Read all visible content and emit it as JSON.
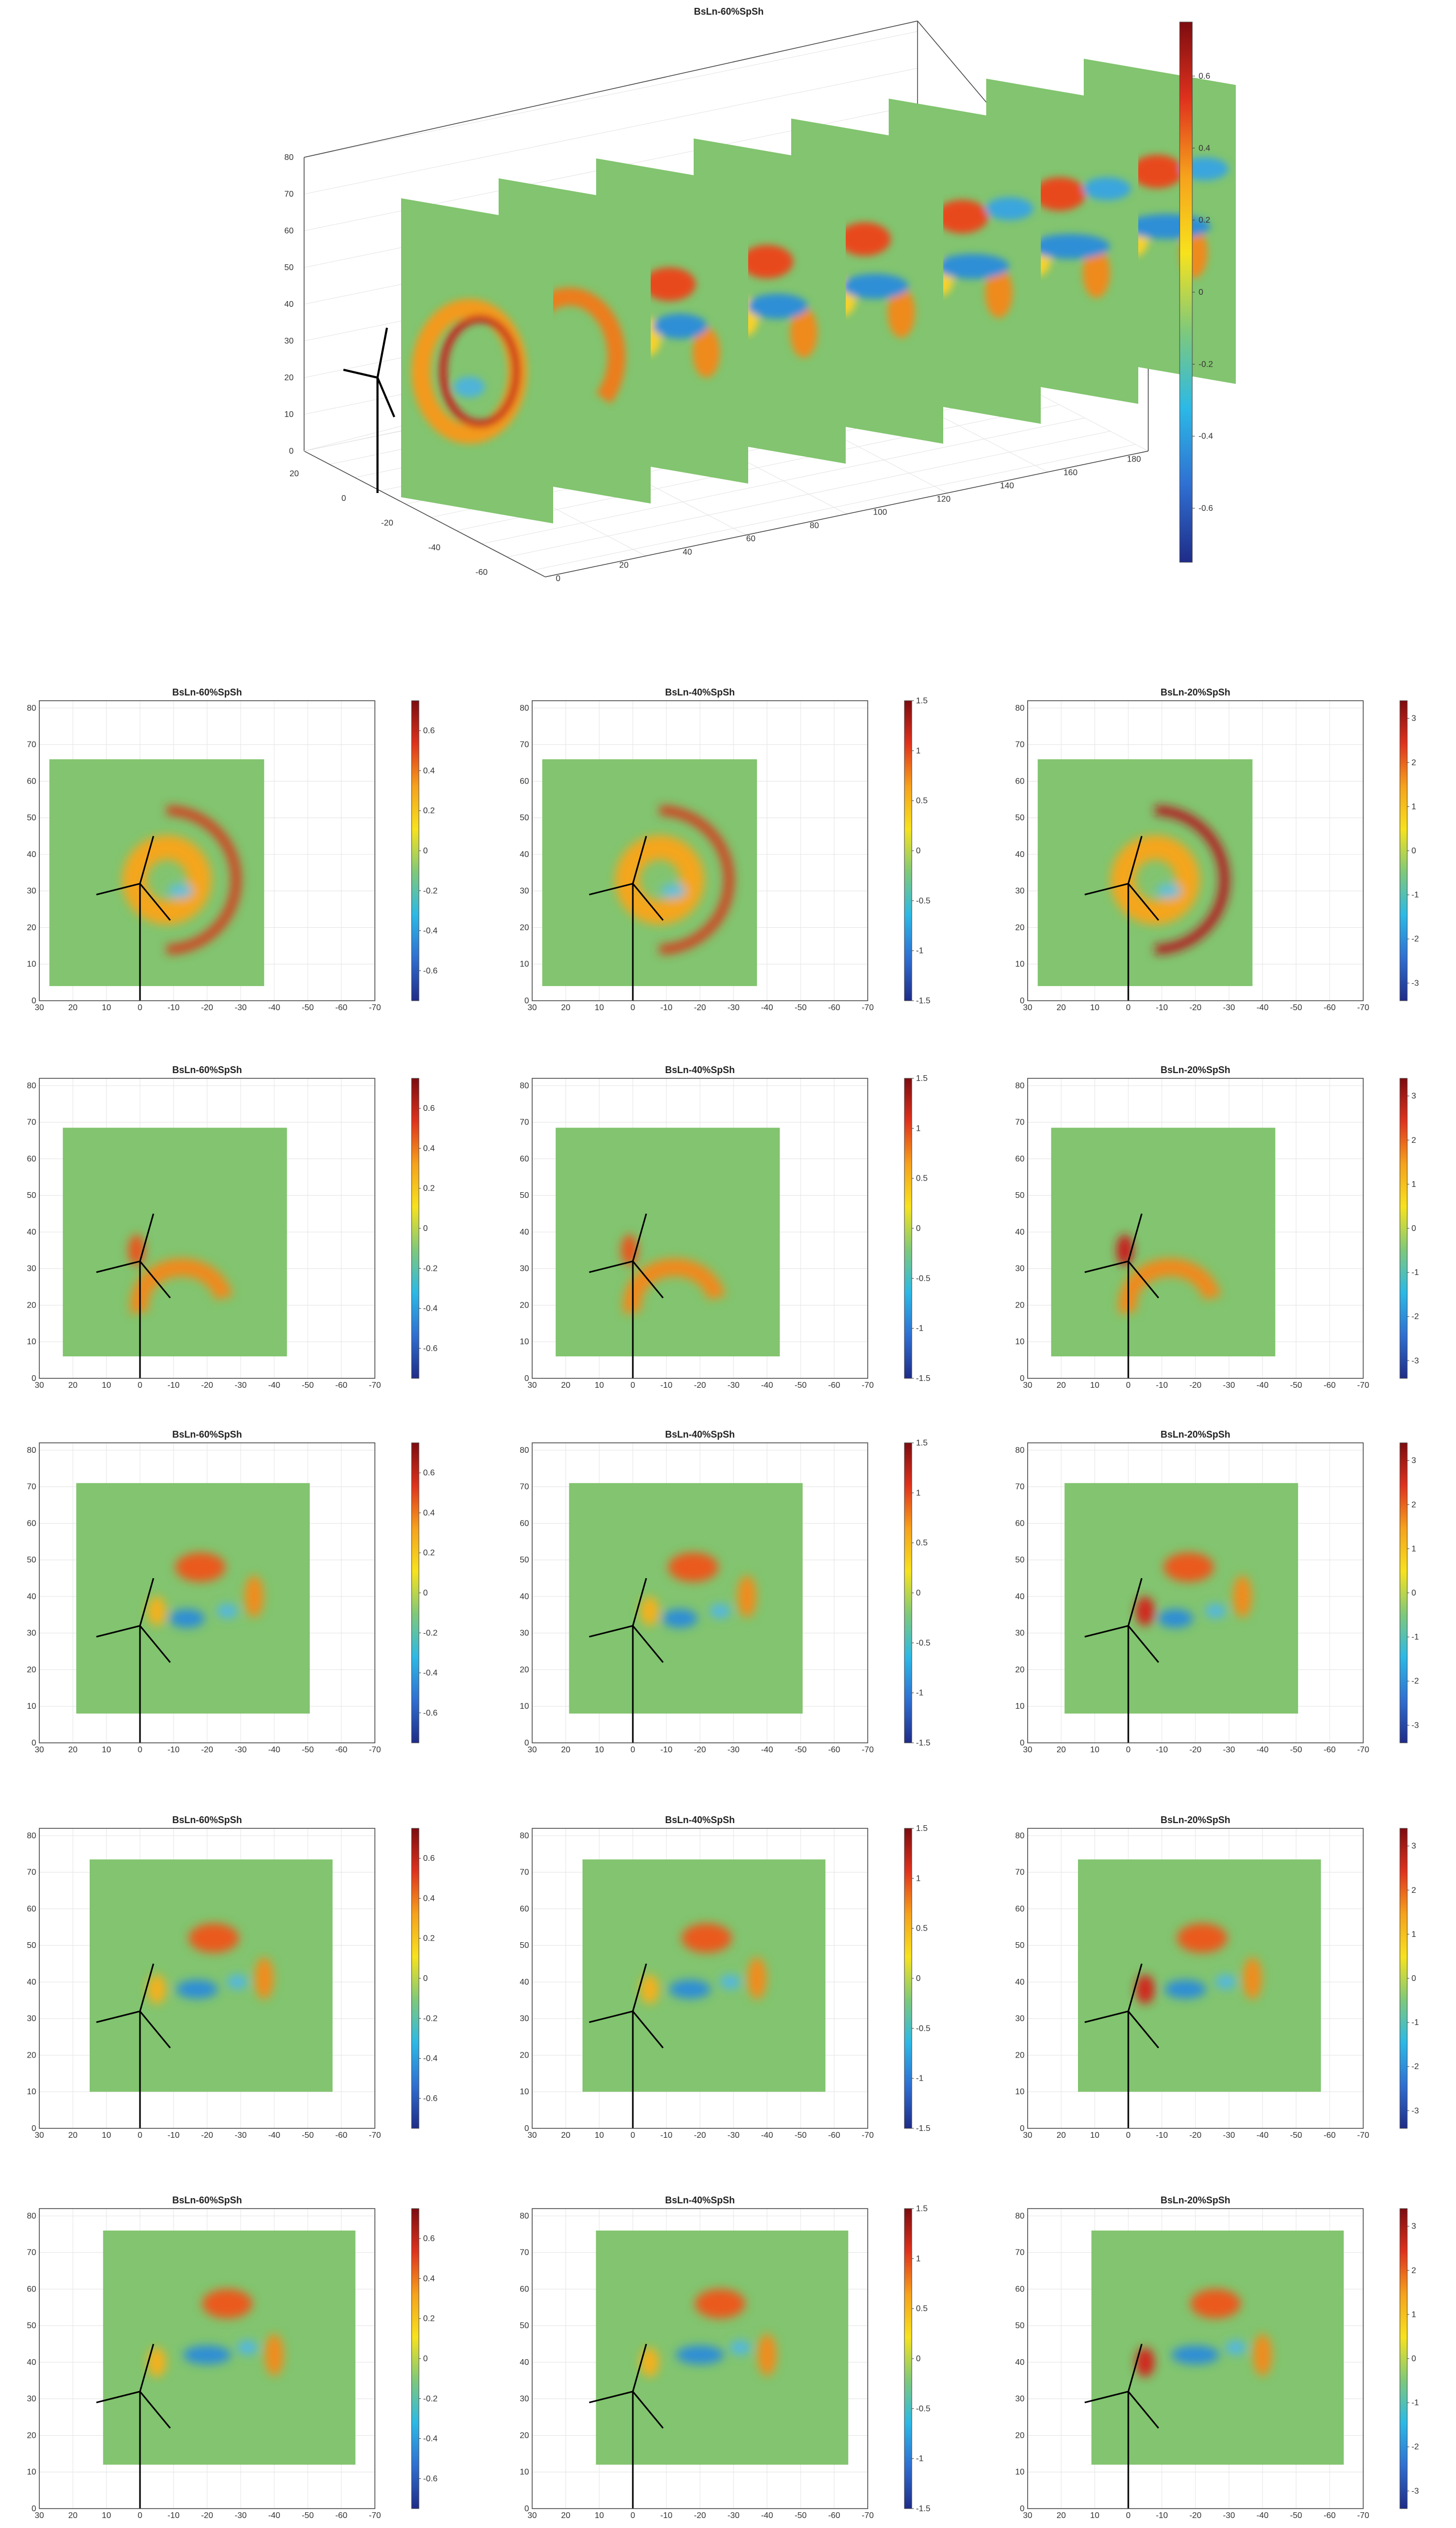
{
  "chart_data": [
    {
      "type": "heatmap",
      "view": "3d-slices",
      "title": "BsLn-60%SpSh",
      "x_ticks": [
        "0",
        "20",
        "40",
        "60",
        "80",
        "100",
        "120",
        "140",
        "160",
        "180"
      ],
      "y_ticks": [
        "20",
        "0",
        "-20",
        "-40",
        "-60"
      ],
      "z_ticks": [
        "0",
        "10",
        "20",
        "30",
        "40",
        "50",
        "60",
        "70",
        "80"
      ],
      "colorbar_ticks": [
        "0.6",
        "0.4",
        "0.2",
        "0",
        "-0.2",
        "-0.4",
        "-0.6"
      ],
      "colorbar_range": [
        -0.75,
        0.75
      ],
      "slices": 8
    },
    {
      "type": "heatmap",
      "grid_rows": 5,
      "grid_cols": 3,
      "x_ticks": [
        "30",
        "20",
        "10",
        "0",
        "-10",
        "-20",
        "-30",
        "-40",
        "-50",
        "-60",
        "-70"
      ],
      "y_ticks": [
        "0",
        "10",
        "20",
        "30",
        "40",
        "50",
        "60",
        "70",
        "80"
      ],
      "xlim": [
        30,
        -70
      ],
      "ylim": [
        0,
        82
      ],
      "columns": [
        {
          "title": "BsLn-60%SpSh",
          "colorbar_range": [
            -0.75,
            0.75
          ],
          "colorbar_ticks": [
            "0.6",
            "0.4",
            "0.2",
            "0",
            "-0.2",
            "-0.4",
            "-0.6"
          ]
        },
        {
          "title": "BsLn-40%SpSh",
          "colorbar_range": [
            -1.5,
            1.5
          ],
          "colorbar_ticks": [
            "1.5",
            "1",
            "0.5",
            "0",
            "-0.5",
            "-1",
            "-1.5"
          ]
        },
        {
          "title": "BsLn-20%SpSh",
          "colorbar_range": [
            -3.4,
            3.4
          ],
          "colorbar_ticks": [
            "3",
            "2",
            "1",
            "0",
            "-1",
            "-2",
            "-3"
          ]
        }
      ]
    }
  ],
  "colors": {
    "colormap": [
      "#1f2c88",
      "#2f6fd2",
      "#2cb9e6",
      "#7fc97a",
      "#f7e21d",
      "#f6a21c",
      "#e0321d",
      "#7d0c10"
    ],
    "background_field": "#82c46f",
    "turbine": "#000000"
  }
}
